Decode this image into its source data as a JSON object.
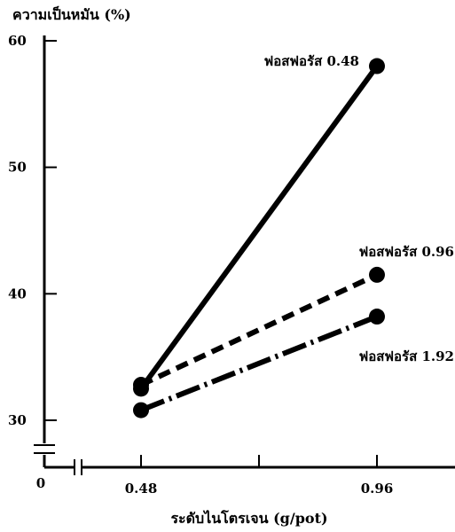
{
  "chart_data": {
    "type": "line",
    "title": "",
    "ylabel": "ความเป็นหมัน (%)",
    "xlabel": "ระดับไนโตรเจน (g/pot)",
    "x_origin_label": "0",
    "categories": [
      "0.48",
      "0.96"
    ],
    "x": [
      0.48,
      0.96
    ],
    "y_ticks": [
      "30",
      "40",
      "50",
      "60"
    ],
    "ylim": [
      30,
      60
    ],
    "axis_breaks": true,
    "grid": false,
    "legend": "none",
    "series": [
      {
        "name": "ฟอสฟอรัส 0.48",
        "values": [
          32.5,
          58
        ],
        "line_style": "solid",
        "color": "#000000"
      },
      {
        "name": "ฟอสฟอรัส 0.96",
        "values": [
          32.8,
          41.5
        ],
        "line_style": "dashed",
        "color": "#000000"
      },
      {
        "name": "ฟอสฟอรัส 1.92",
        "values": [
          30.8,
          38.2
        ],
        "line_style": "dash-dot",
        "color": "#000000"
      }
    ]
  }
}
